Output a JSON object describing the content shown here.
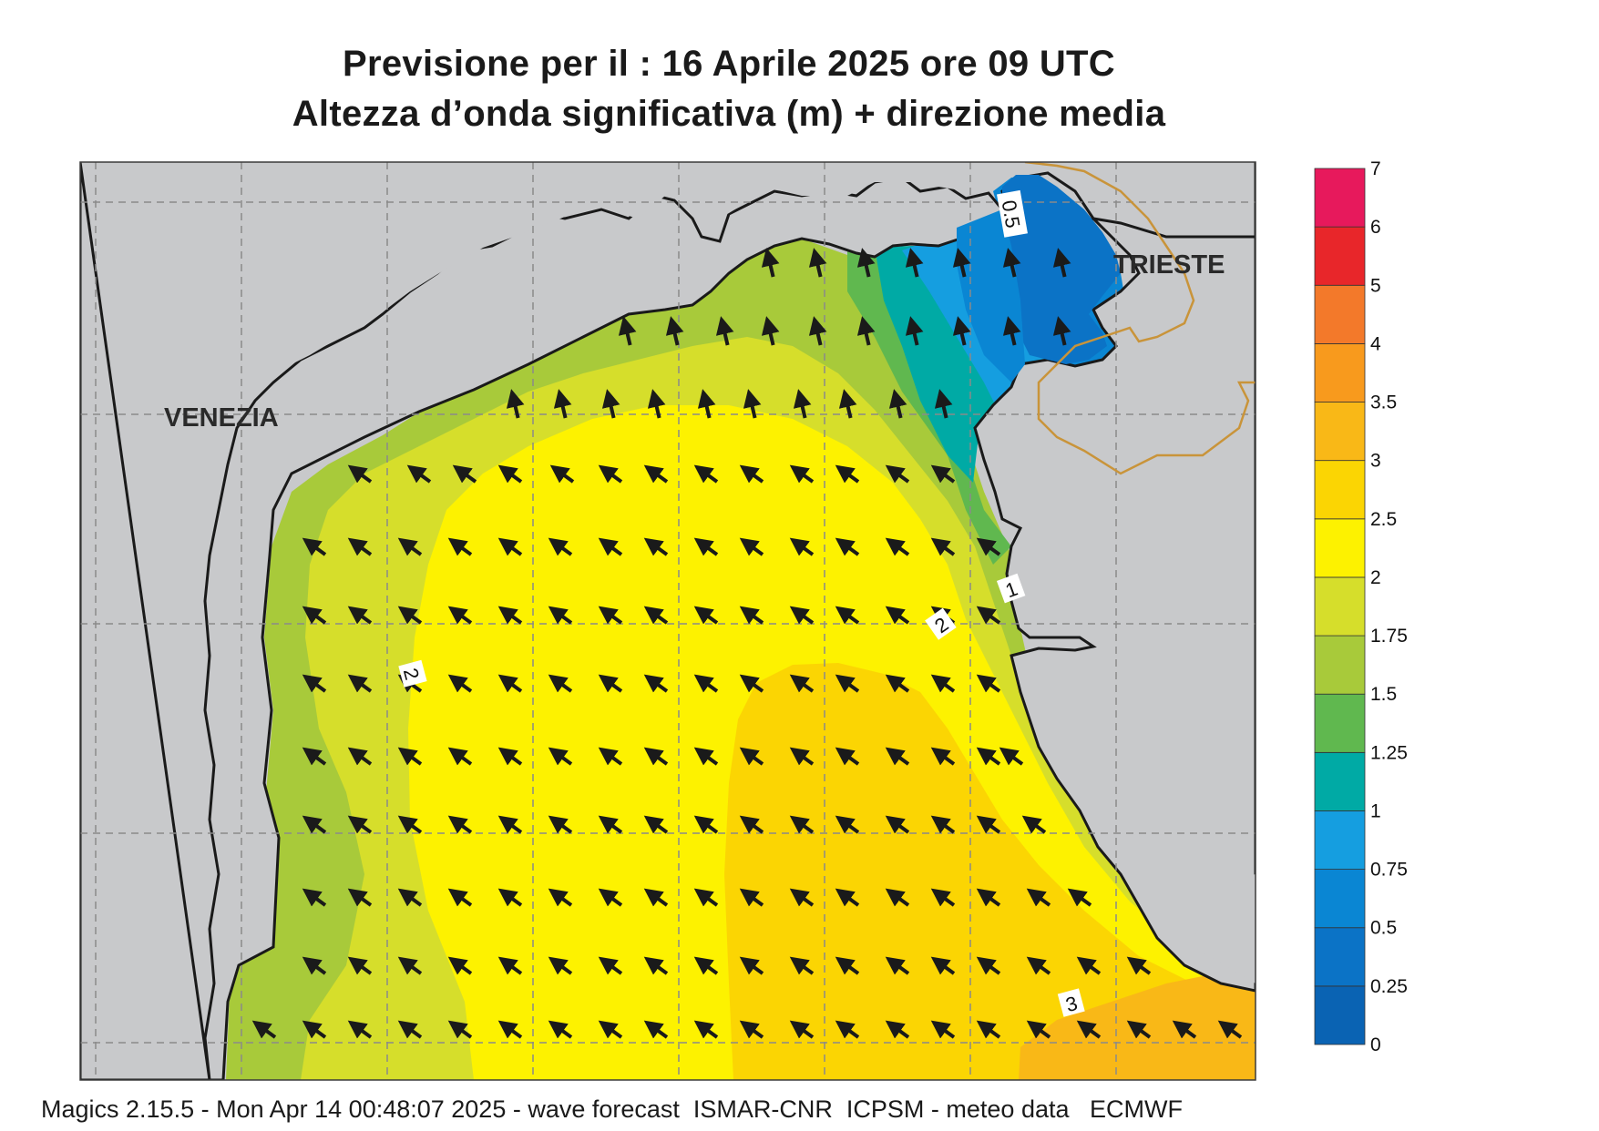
{
  "title_line1": "Previsione per il  :  16   Aprile  2025   ore 09 UTC",
  "title_line2": "Altezza d’onda significativa (m) + direzione media",
  "footer": "Magics 2.15.5 - Mon Apr 14 00:48:07 2025 - wave forecast  ISMAR-CNR  ICPSM - meteo data   ECMWF",
  "cities": [
    {
      "name": "VENEZIA"
    },
    {
      "name": "TRIESTE"
    }
  ],
  "contour_labels": [
    "0.5",
    "1",
    "2",
    "2",
    "3"
  ],
  "legend": {
    "levels": [
      "0",
      "0.25",
      "0.5",
      "0.75",
      "1",
      "1.25",
      "1.5",
      "1.75",
      "2",
      "2.5",
      "3",
      "3.5",
      "4",
      "5",
      "6",
      "7"
    ],
    "colors": [
      "#0a63b3",
      "#0b73c6",
      "#0a86d3",
      "#159ee0",
      "#00aaa5",
      "#60b84f",
      "#a8ca3a",
      "#d6de2b",
      "#fdf200",
      "#fbd503",
      "#f9b817",
      "#f89a1d",
      "#f3792a",
      "#e8262a",
      "#e7195c"
    ]
  },
  "colors": {
    "land": "#c8c9cb",
    "coast": "#1a1a1a",
    "border": "#c9943a",
    "grid": "#8a8a8a"
  },
  "wave_direction": "north-west"
}
